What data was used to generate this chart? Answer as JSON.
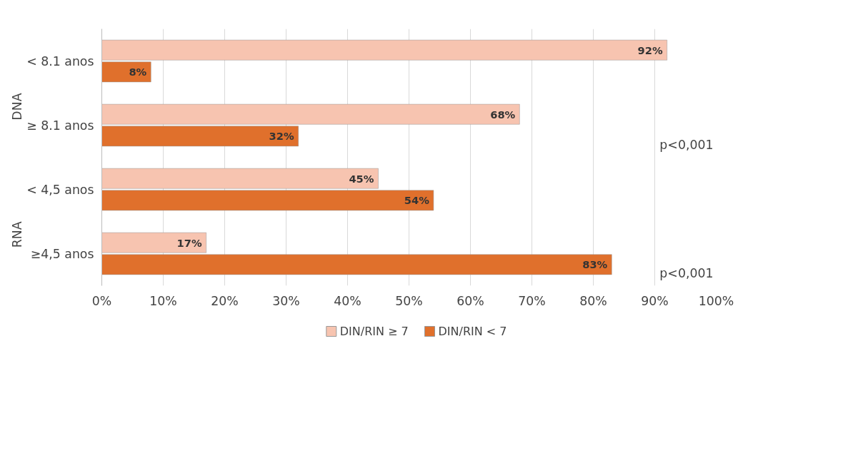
{
  "chart_data": {
    "type": "bar",
    "orientation": "horizontal",
    "categories": [
      "< 8.1 anos",
      "≥ 8.1 anos",
      "< 4,5 anos",
      "≥4,5 anos"
    ],
    "series": [
      {
        "name": "DIN/RIN ≥ 7",
        "color": "#f7c4b0",
        "values": [
          92,
          68,
          45,
          17
        ],
        "value_labels": [
          "92%",
          "68%",
          "45%",
          "17%"
        ]
      },
      {
        "name": "DIN/RIN < 7",
        "color": "#e0702c",
        "values": [
          8,
          32,
          54,
          83
        ],
        "value_labels": [
          "8%",
          "32%",
          "54%",
          "83%"
        ]
      }
    ],
    "xlim": [
      0,
      100
    ],
    "xticks": [
      {
        "value": 0,
        "label": "0%"
      },
      {
        "value": 10,
        "label": "10%"
      },
      {
        "value": 20,
        "label": "20%"
      },
      {
        "value": 30,
        "label": "30%"
      },
      {
        "value": 40,
        "label": "40%"
      },
      {
        "value": 50,
        "label": "50%"
      },
      {
        "value": 60,
        "label": "60%"
      },
      {
        "value": 70,
        "label": "70%"
      },
      {
        "value": 80,
        "label": "80%"
      },
      {
        "value": 90,
        "label": "90%"
      },
      {
        "value": 100,
        "label": "100%"
      }
    ],
    "annotations": [
      "DNA",
      "RNA",
      "p<0,001",
      "p<0,001"
    ],
    "grid": "x",
    "legend": "bottom"
  }
}
